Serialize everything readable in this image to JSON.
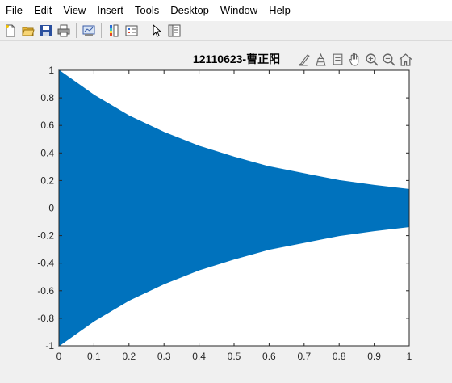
{
  "menu": {
    "items": [
      {
        "mn": "F",
        "rest": "ile"
      },
      {
        "mn": "E",
        "rest": "dit"
      },
      {
        "mn": "V",
        "rest": "iew"
      },
      {
        "mn": "I",
        "rest": "nsert"
      },
      {
        "mn": "T",
        "rest": "ools"
      },
      {
        "mn": "D",
        "rest": "esktop"
      },
      {
        "mn": "W",
        "rest": "indow"
      },
      {
        "mn": "H",
        "rest": "elp"
      }
    ]
  },
  "toolbar": {
    "icons": [
      "new-figure-icon",
      "open-file-icon",
      "save-icon",
      "print-icon",
      "link-plot-icon",
      "colorbar-icon",
      "legend-icon",
      "edit-plot-arrow-icon",
      "property-inspector-icon"
    ]
  },
  "axes_toolbar": {
    "icons": [
      "brush-icon",
      "data-tips-icon",
      "rotate-icon",
      "pan-hand-icon",
      "zoom-in-icon",
      "zoom-out-icon",
      "home-icon"
    ]
  },
  "chart_data": {
    "type": "line",
    "title": "12110623-曹正阳",
    "xlabel": "",
    "ylabel": "",
    "xlim": [
      0,
      1
    ],
    "ylim": [
      -1,
      1
    ],
    "xticks": [
      "0",
      "0.1",
      "0.2",
      "0.3",
      "0.4",
      "0.5",
      "0.6",
      "0.7",
      "0.8",
      "0.9",
      "1"
    ],
    "yticks": [
      "1",
      "0.8",
      "0.6",
      "0.4",
      "0.2",
      "0",
      "-0.2",
      "-0.4",
      "-0.6",
      "-0.8",
      "-1"
    ],
    "series": [
      {
        "color": "#0072bd",
        "envelope": {
          "x": [
            0,
            0.1,
            0.2,
            0.3,
            0.4,
            0.5,
            0.6,
            0.7,
            0.8,
            0.9,
            1.0
          ],
          "upper": [
            1.0,
            0.82,
            0.67,
            0.55,
            0.45,
            0.37,
            0.3,
            0.25,
            0.2,
            0.165,
            0.135
          ],
          "lower": [
            -1.0,
            -0.82,
            -0.67,
            -0.55,
            -0.45,
            -0.37,
            -0.3,
            -0.25,
            -0.2,
            -0.165,
            -0.135
          ]
        }
      }
    ],
    "grid": false,
    "background": "#ffffff"
  }
}
